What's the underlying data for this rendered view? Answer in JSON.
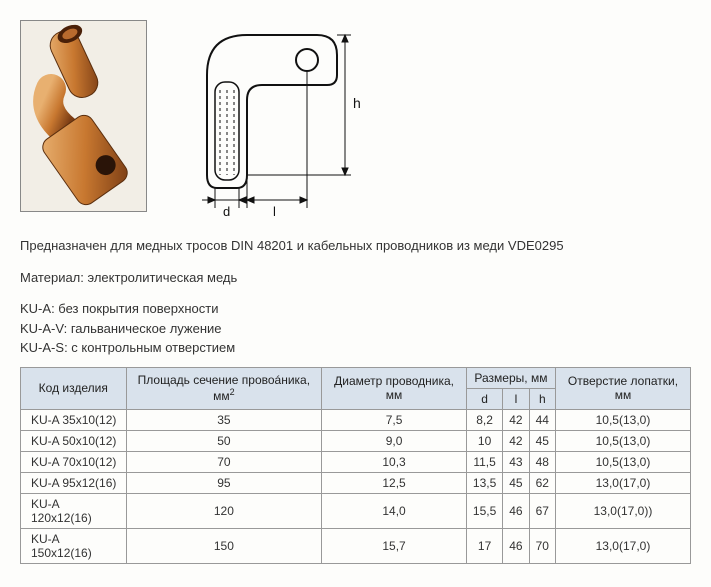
{
  "description": {
    "line1": "Предназначен для медных тросов DIN 48201 и кабельных проводников из меди VDE0295",
    "material_label": "Материал",
    "material_value": "электролитическая медь",
    "variants": [
      {
        "code": "KU-A",
        "text": "без покрытия поверхности"
      },
      {
        "code": "KU-A-V",
        "text": "гальваническое лужение"
      },
      {
        "code": "KU-A-S",
        "text": "с контрольным отверстием"
      }
    ]
  },
  "table": {
    "headers": {
      "code": "Код изделия",
      "area": "Площадь сечение провоáника, мм",
      "area_unit_sup": "2",
      "diameter": "Диаметр проводника, мм",
      "sizes": "Размеры, мм",
      "d": "d",
      "l": "l",
      "h": "h",
      "hole": "Отверстие лопатки, мм"
    },
    "rows": [
      {
        "code": "KU-A 35x10(12)",
        "area": "35",
        "diam": "7,5",
        "d": "8,2",
        "l": "42",
        "h": "44",
        "hole": "10,5(13,0)"
      },
      {
        "code": "KU-A 50x10(12)",
        "area": "50",
        "diam": "9,0",
        "d": "10",
        "l": "42",
        "h": "45",
        "hole": "10,5(13,0)"
      },
      {
        "code": "KU-A 70x10(12)",
        "area": "70",
        "diam": "10,3",
        "d": "11,5",
        "l": "43",
        "h": "48",
        "hole": "10,5(13,0)"
      },
      {
        "code": "KU-A 95x12(16)",
        "area": "95",
        "diam": "12,5",
        "d": "13,5",
        "l": "45",
        "h": "62",
        "hole": "13,0(17,0)"
      },
      {
        "code": "KU-A 120x12(16)",
        "area": "120",
        "diam": "14,0",
        "d": "15,5",
        "l": "46",
        "h": "67",
        "hole": "13,0(17,0))"
      },
      {
        "code": "KU-A 150x12(16)",
        "area": "150",
        "diam": "15,7",
        "d": "17",
        "l": "46",
        "h": "70",
        "hole": "13,0(17,0)"
      }
    ]
  },
  "diagram": {
    "labels": {
      "h": "h",
      "d": "d",
      "l": "l"
    },
    "stroke": "#111111",
    "fill": "#ffffff"
  },
  "photo": {
    "copper_light": "#d89050",
    "copper_dark": "#8a4a1e",
    "hole": "#2a1408"
  }
}
